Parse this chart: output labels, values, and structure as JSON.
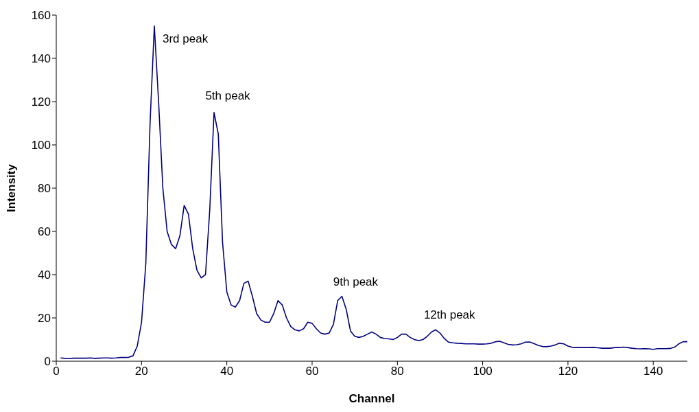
{
  "chart_data": {
    "type": "line",
    "xlabel": "Channel",
    "ylabel": "Intensity",
    "x": [
      1,
      2,
      3,
      4,
      5,
      6,
      7,
      8,
      9,
      10,
      11,
      12,
      13,
      14,
      15,
      16,
      17,
      18,
      19,
      20,
      21,
      22,
      23,
      24,
      25,
      26,
      27,
      28,
      29,
      30,
      31,
      32,
      33,
      34,
      35,
      36,
      37,
      38,
      39,
      40,
      41,
      42,
      43,
      44,
      45,
      46,
      47,
      48,
      49,
      50,
      51,
      52,
      53,
      54,
      55,
      56,
      57,
      58,
      59,
      60,
      61,
      62,
      63,
      64,
      65,
      66,
      67,
      68,
      69,
      70,
      71,
      72,
      73,
      74,
      75,
      76,
      77,
      78,
      79,
      80,
      81,
      82,
      83,
      84,
      85,
      86,
      87,
      88,
      89,
      90,
      91,
      92,
      93,
      94,
      95,
      96,
      97,
      98,
      99,
      100,
      101,
      102,
      103,
      104,
      105,
      106,
      107,
      108,
      109,
      110,
      111,
      112,
      113,
      114,
      115,
      116,
      117,
      118,
      119,
      120,
      121,
      122,
      123,
      124,
      125,
      126,
      127,
      128,
      129,
      130,
      131,
      132,
      133,
      134,
      135,
      136,
      137,
      138,
      139,
      140,
      141,
      142,
      143,
      144,
      145,
      146,
      147,
      148
    ],
    "series": [
      {
        "color": "#000080",
        "values": [
          1.5,
          1.3,
          1.2,
          1.4,
          1.4,
          1.4,
          1.4,
          1.5,
          1.3,
          1.4,
          1.5,
          1.5,
          1.4,
          1.5,
          1.7,
          1.7,
          1.8,
          2.5,
          7,
          18,
          45,
          110,
          155,
          120,
          80,
          60,
          54,
          52,
          58,
          72,
          68,
          52,
          42,
          38.5,
          40,
          70,
          115,
          105,
          55,
          32,
          26,
          25,
          28,
          36,
          37,
          30,
          22,
          19,
          18,
          18,
          22,
          28,
          26,
          20,
          16,
          14.5,
          14,
          15,
          18,
          17.5,
          15,
          13,
          12.5,
          13,
          17,
          28,
          30,
          24,
          14,
          11.5,
          11,
          11.5,
          12.5,
          13.5,
          12.5,
          11,
          10.5,
          10.3,
          10,
          11,
          12.5,
          12.5,
          11,
          10,
          9.5,
          10,
          11.5,
          13.5,
          14.5,
          13,
          10.5,
          8.8,
          8.5,
          8.3,
          8.2,
          8,
          8,
          8,
          7.9,
          7.9,
          8,
          8.3,
          9,
          9.2,
          8.5,
          7.8,
          7.5,
          7.6,
          8,
          8.8,
          8.9,
          8.2,
          7.3,
          6.8,
          6.7,
          7,
          7.5,
          8.3,
          8,
          7,
          6.4,
          6.3,
          6.3,
          6.3,
          6.3,
          6.4,
          6.2,
          6,
          6,
          6,
          6.3,
          6.3,
          6.5,
          6.3,
          6,
          5.8,
          5.7,
          5.8,
          5.7,
          5.5,
          5.8,
          5.8,
          5.8,
          5.9,
          6.5,
          8,
          9,
          9
        ]
      }
    ],
    "xlim": [
      0,
      148
    ],
    "xticks": [
      0,
      20,
      40,
      60,
      80,
      100,
      120,
      140
    ],
    "ylim": [
      0,
      160
    ],
    "yticks": [
      0,
      20,
      40,
      60,
      80,
      100,
      120,
      140,
      160
    ],
    "grid": false,
    "legend": false,
    "marker": "none",
    "line_style": "solid",
    "annotations": [
      {
        "text": "3rd peak",
        "x": 23,
        "y": 155
      },
      {
        "text": "5th peak",
        "x": 37,
        "y": 116
      },
      {
        "text": "9th peak",
        "x": 67,
        "y": 30
      },
      {
        "text": "12th peak",
        "x": 89,
        "y": 14.5
      }
    ]
  }
}
